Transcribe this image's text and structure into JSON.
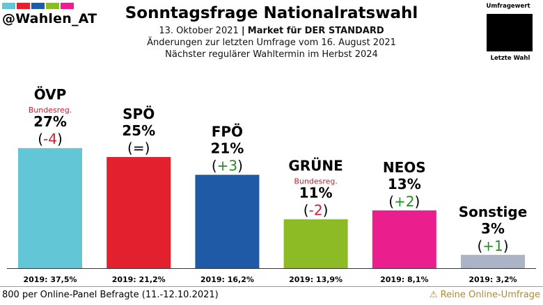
{
  "header": {
    "handle": "@Wahlen_AT",
    "logo_colors": [
      "#63c6d6",
      "#e3202e",
      "#1f5aa6",
      "#8cbb26",
      "#ea1e8c"
    ],
    "title": "Sonntagsfrage Nationalratswahl",
    "date": "13. Oktober 2021",
    "separator": "|",
    "institute": "Market für DER STANDARD",
    "changes_note": "Änderungen zur letzten Umfrage vom 16. August 2021",
    "next_election": "Nächster regulärer Wahltermin im Herbst 2024"
  },
  "legend": {
    "top_label": "Umfragewert",
    "bottom_label": "Letzte Wahl"
  },
  "footer": {
    "sample": "800 per Online-Panel Befragte (11.-12.10.2021)",
    "warning_icon": "warning-icon",
    "warning_glyph": "⚠",
    "warning": "Reine Online-Umfrage"
  },
  "chart_data": {
    "type": "bar",
    "categories": [
      "ÖVP",
      "SPÖ",
      "FPÖ",
      "GRÜNE",
      "NEOS",
      "Sonstige"
    ],
    "values": [
      27,
      25,
      21,
      11,
      13,
      3
    ],
    "value_labels": [
      "27%",
      "25%",
      "21%",
      "11%",
      "13%",
      "3%"
    ],
    "changes": [
      "-4",
      "=",
      "+3",
      "-2",
      "+2",
      "+1"
    ],
    "badges": [
      "Bundesreg.",
      "",
      "",
      "Bundesreg.",
      "",
      ""
    ],
    "previous_labels": [
      "2019: 37,5%",
      "2019: 21,2%",
      "2019: 16,2%",
      "2019: 13,9%",
      "2019: 8,1%",
      "2019: 3,2%"
    ],
    "previous_values": [
      37.5,
      21.2,
      16.2,
      13.9,
      8.1,
      3.2
    ],
    "colors": [
      "#63c6d6",
      "#e3202e",
      "#1f5aa6",
      "#8cbb26",
      "#ea1e8c",
      "#aab4c6"
    ],
    "change_colors": {
      "negative": "#c8202e",
      "positive": "#2a8a2a",
      "neutral": "#000000"
    },
    "badge_color": "#c8202e",
    "title": "Sonntagsfrage Nationalratswahl",
    "xlabel": "",
    "ylabel": ""
  }
}
